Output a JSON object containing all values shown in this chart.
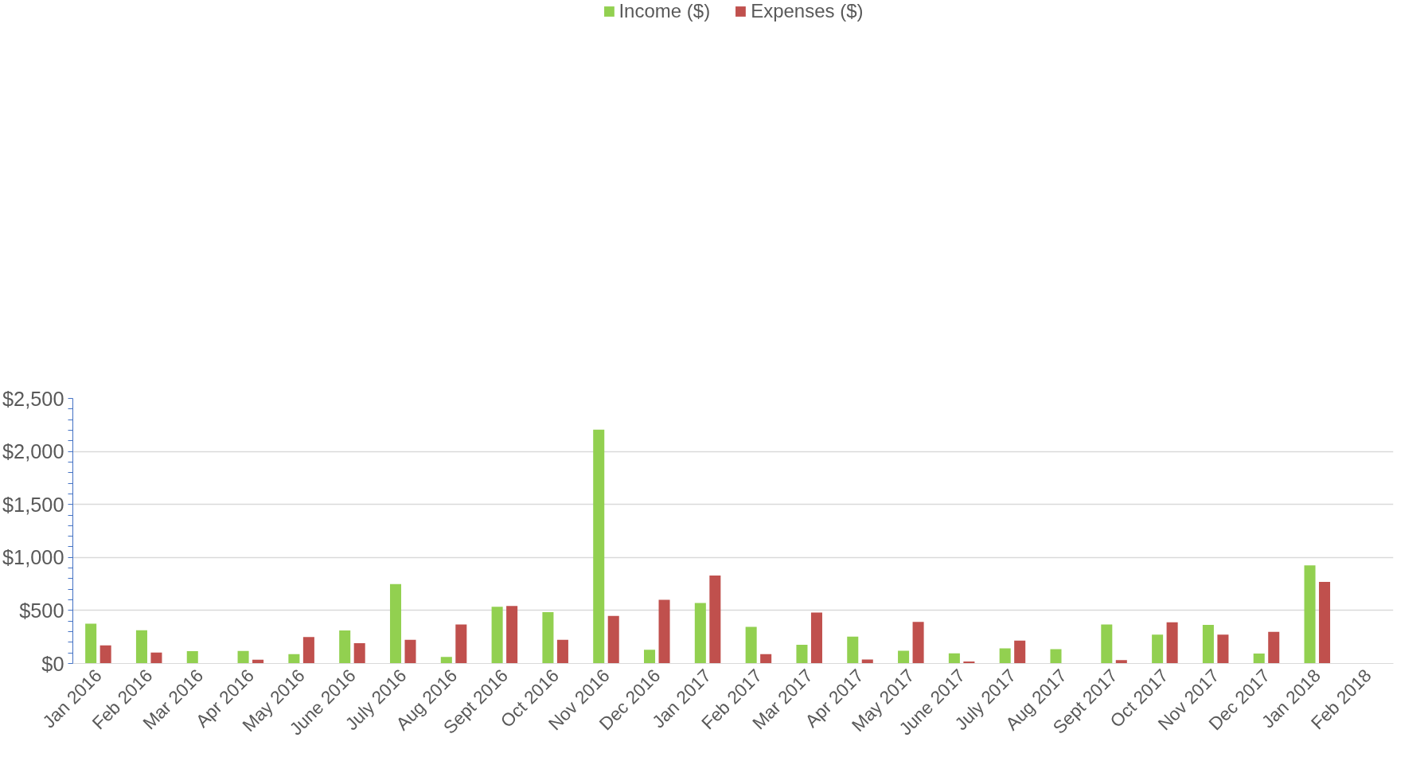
{
  "chart_data": {
    "type": "bar",
    "categories": [
      "Jan 2016",
      "Feb 2016",
      "Mar 2016",
      "Apr 2016",
      "May 2016",
      "June 2016",
      "July 2016",
      "Aug 2016",
      "Sept 2016",
      "Oct 2016",
      "Nov 2016",
      "Dec 2016",
      "Jan 2017",
      "Feb 2017",
      "Mar 2017",
      "Apr 2017",
      "May 2017",
      "June 2017",
      "July 2017",
      "Aug 2017",
      "Sept 2017",
      "Oct 2017",
      "Nov 2017",
      "Dec 2017",
      "Jan 2018",
      "Feb 2018"
    ],
    "series": [
      {
        "name": "Income ($)",
        "color": "#92d050",
        "values": [
          375,
          314,
          117,
          118,
          89,
          311,
          749,
          62,
          535,
          484,
          2205,
          130,
          571,
          345,
          177,
          254,
          120,
          96,
          142,
          135,
          367,
          273,
          365,
          94,
          926,
          null
        ]
      },
      {
        "name": "Expenses ($)",
        "color": "#c0504d",
        "values": [
          170,
          103,
          null,
          36,
          249,
          192,
          223,
          367,
          542,
          223,
          448,
          600,
          829,
          88,
          480,
          37,
          393,
          18,
          216,
          null,
          31,
          389,
          273,
          299,
          770,
          null
        ]
      }
    ],
    "ylim": [
      0,
      2500
    ],
    "yticks": [
      {
        "value": 0,
        "label": "$0"
      },
      {
        "value": 100,
        "label": null
      },
      {
        "value": 200,
        "label": null
      },
      {
        "value": 300,
        "label": null
      },
      {
        "value": 400,
        "label": null
      },
      {
        "value": 500,
        "label": "$500"
      },
      {
        "value": 600,
        "label": null
      },
      {
        "value": 700,
        "label": null
      },
      {
        "value": 800,
        "label": null
      },
      {
        "value": 900,
        "label": null
      },
      {
        "value": 1000,
        "label": "$1,000"
      },
      {
        "value": 1100,
        "label": null
      },
      {
        "value": 1200,
        "label": null
      },
      {
        "value": 1300,
        "label": null
      },
      {
        "value": 1400,
        "label": null
      },
      {
        "value": 1500,
        "label": "$1,500"
      },
      {
        "value": 1600,
        "label": null
      },
      {
        "value": 1700,
        "label": null
      },
      {
        "value": 1800,
        "label": null
      },
      {
        "value": 1900,
        "label": null
      },
      {
        "value": 2000,
        "label": "$2,000"
      },
      {
        "value": 2100,
        "label": null
      },
      {
        "value": 2200,
        "label": null
      },
      {
        "value": 2300,
        "label": null
      },
      {
        "value": 2400,
        "label": null
      },
      {
        "value": 2500,
        "label": "$2,500"
      }
    ],
    "grid": "y",
    "legend": "top"
  }
}
